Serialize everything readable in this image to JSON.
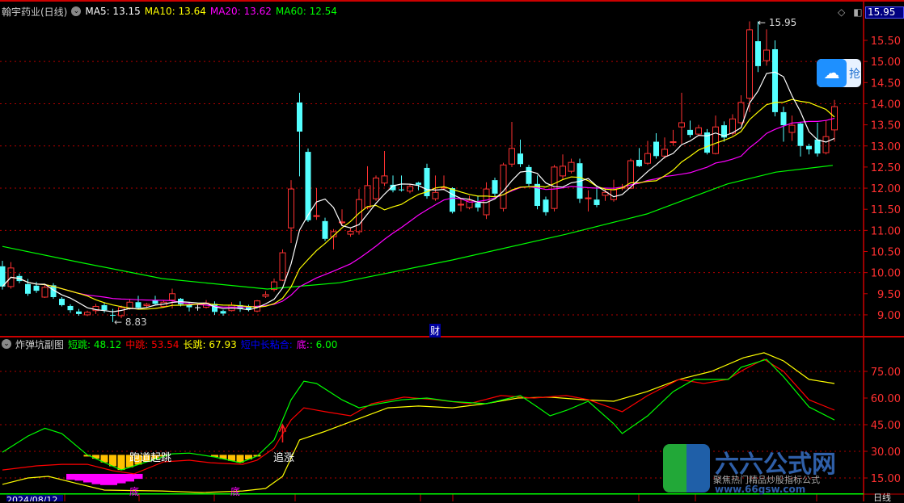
{
  "header": {
    "stock_title": "翰宇药业(日线)",
    "ma5": "MA5: 13.15",
    "ma10": "MA10: 13.64",
    "ma20": "MA20: 13.62",
    "ma60": "MA60: 12.54",
    "current_price_box": "15.95"
  },
  "sub_header": {
    "title": "炸弹坑副图",
    "short_label": "短跳",
    "short_value": ": 48.12",
    "mid_label": "中跳",
    "mid_value": ": 53.54",
    "long_label": "长跳",
    "long_value": ": 67.93",
    "combined_label": "短中长粘合:",
    "bottom_label": "底:",
    "bottom_value": ": 6.00"
  },
  "annotations": {
    "high": "15.95",
    "low": "8.83",
    "finance_marker": "财",
    "runway_jump": "跑道起跳",
    "chase": "追涨",
    "bottom1": "底",
    "bottom2": "底"
  },
  "bottom_axis": {
    "date": "2024/08/12",
    "period": "日线"
  },
  "logo": {
    "name": "六六公式网",
    "slogan": "聚焦热门精品炒股指标公式",
    "url": "www.66gsw.com"
  },
  "floating_badge": {
    "icon": "cloud-icon",
    "text": "抢"
  },
  "colors": {
    "up": "#ff3232",
    "down": "#54ffff",
    "ma5": "#ffffff",
    "ma10": "#ffff00",
    "ma20": "#ff00ff",
    "ma60": "#00ff00",
    "grid": "#b00000",
    "axis_text": "#ff3030"
  },
  "chart_data": [
    {
      "type": "candlestick",
      "price_axis": {
        "ticks": [
          15.5,
          15.0,
          14.5,
          14.0,
          13.5,
          13.0,
          12.5,
          12.0,
          11.5,
          11.0,
          10.5,
          10.0,
          9.5,
          9.0
        ],
        "labels": [
          "15.50",
          "15.00",
          "14.50",
          "14.00",
          "13.50",
          "13.00",
          "12.50",
          "12.00",
          "11.50",
          "11.00",
          "10.50",
          "10.00",
          "9.50",
          "9.00"
        ]
      },
      "ohlc": [
        [
          10.15,
          10.28,
          9.6,
          9.67
        ],
        [
          9.67,
          10.25,
          9.62,
          10.11
        ],
        [
          9.92,
          9.98,
          9.75,
          9.8
        ],
        [
          9.73,
          9.85,
          9.45,
          9.5
        ],
        [
          9.69,
          9.78,
          9.52,
          9.57
        ],
        [
          9.42,
          9.72,
          9.4,
          9.65
        ],
        [
          9.7,
          9.75,
          9.38,
          9.42
        ],
        [
          9.38,
          9.42,
          9.2,
          9.23
        ],
        [
          9.21,
          9.25,
          9.05,
          9.11
        ],
        [
          9.08,
          9.14,
          8.98,
          9.02
        ],
        [
          9.0,
          9.1,
          8.97,
          9.06
        ],
        [
          9.1,
          9.26,
          9.02,
          9.2
        ],
        [
          9.23,
          9.3,
          9.05,
          9.11
        ],
        [
          9.0,
          9.14,
          8.83,
          8.98
        ],
        [
          8.98,
          9.22,
          8.92,
          9.17
        ],
        [
          9.15,
          9.36,
          9.12,
          9.3
        ],
        [
          9.3,
          9.45,
          9.15,
          9.17
        ],
        [
          9.22,
          9.28,
          9.16,
          9.25
        ],
        [
          9.35,
          9.45,
          9.24,
          9.26
        ],
        [
          9.2,
          9.34,
          9.18,
          9.3
        ],
        [
          9.35,
          9.62,
          9.15,
          9.5
        ],
        [
          9.38,
          9.4,
          9.2,
          9.25
        ],
        [
          9.24,
          9.3,
          9.08,
          9.18
        ],
        [
          9.18,
          9.25,
          9.1,
          9.18
        ],
        [
          9.18,
          9.35,
          9.15,
          9.28
        ],
        [
          9.26,
          9.32,
          9.0,
          9.07
        ],
        [
          9.09,
          9.12,
          8.98,
          9.03
        ],
        [
          9.1,
          9.3,
          9.08,
          9.23
        ],
        [
          9.23,
          9.32,
          9.07,
          9.14
        ],
        [
          9.18,
          9.24,
          9.08,
          9.12
        ],
        [
          9.09,
          9.35,
          9.06,
          9.33
        ],
        [
          9.44,
          9.56,
          9.4,
          9.48
        ],
        [
          9.6,
          9.86,
          9.55,
          9.78
        ],
        [
          9.82,
          10.55,
          9.8,
          10.47
        ],
        [
          11.06,
          12.19,
          10.7,
          11.98
        ],
        [
          14.03,
          14.26,
          12.28,
          13.34
        ],
        [
          12.86,
          12.94,
          11.2,
          11.24
        ],
        [
          11.33,
          12.0,
          11.25,
          11.35
        ],
        [
          11.22,
          11.3,
          10.75,
          10.8
        ],
        [
          10.85,
          11.03,
          10.55,
          10.97
        ],
        [
          11.18,
          11.5,
          11.1,
          11.2
        ],
        [
          10.91,
          11.05,
          10.85,
          10.98
        ],
        [
          10.97,
          11.98,
          10.9,
          11.73
        ],
        [
          11.54,
          12.52,
          11.5,
          12.06
        ],
        [
          11.75,
          12.3,
          11.7,
          12.24
        ],
        [
          12.12,
          12.88,
          12.05,
          12.29
        ],
        [
          12.08,
          12.3,
          11.9,
          11.95
        ],
        [
          11.97,
          12.3,
          11.92,
          11.95
        ],
        [
          11.93,
          12.1,
          11.88,
          12.04
        ],
        [
          12.13,
          12.15,
          11.95,
          12.08
        ],
        [
          12.48,
          12.58,
          11.75,
          11.81
        ],
        [
          11.75,
          12.3,
          11.7,
          11.9
        ],
        [
          12.0,
          12.3,
          11.95,
          12.02
        ],
        [
          12.0,
          12.02,
          11.4,
          11.44
        ],
        [
          11.6,
          11.75,
          11.45,
          11.62
        ],
        [
          11.54,
          11.82,
          11.5,
          11.71
        ],
        [
          11.65,
          11.8,
          11.45,
          11.54
        ],
        [
          11.37,
          12.14,
          11.27,
          11.98
        ],
        [
          12.19,
          12.25,
          11.8,
          11.87
        ],
        [
          11.52,
          12.6,
          11.45,
          12.55
        ],
        [
          12.57,
          13.57,
          12.5,
          12.94
        ],
        [
          12.82,
          13.15,
          12.5,
          12.57
        ],
        [
          12.5,
          12.55,
          12.05,
          12.1
        ],
        [
          12.1,
          12.3,
          11.5,
          11.58
        ],
        [
          11.73,
          11.8,
          11.35,
          11.43
        ],
        [
          11.52,
          12.55,
          11.45,
          12.5
        ],
        [
          12.29,
          12.8,
          12.2,
          12.52
        ],
        [
          12.4,
          12.7,
          12.35,
          12.61
        ],
        [
          12.59,
          12.7,
          11.65,
          11.75
        ],
        [
          11.75,
          11.95,
          11.45,
          11.77
        ],
        [
          11.73,
          12.05,
          11.55,
          11.6
        ],
        [
          11.83,
          12.0,
          11.7,
          11.9
        ],
        [
          11.73,
          12.2,
          11.68,
          11.96
        ],
        [
          12.0,
          12.1,
          11.95,
          12.02
        ],
        [
          12.0,
          12.7,
          11.98,
          12.65
        ],
        [
          12.67,
          12.95,
          12.5,
          12.52
        ],
        [
          12.59,
          13.12,
          12.55,
          12.82
        ],
        [
          13.1,
          13.3,
          12.7,
          12.76
        ],
        [
          12.76,
          13.2,
          12.7,
          12.92
        ],
        [
          13.08,
          13.38,
          13.0,
          13.1
        ],
        [
          13.45,
          14.26,
          13.05,
          13.55
        ],
        [
          13.38,
          13.6,
          13.2,
          13.26
        ],
        [
          13.28,
          13.5,
          13.25,
          13.43
        ],
        [
          13.32,
          13.4,
          12.8,
          12.84
        ],
        [
          12.82,
          13.72,
          12.8,
          13.45
        ],
        [
          13.49,
          13.58,
          13.1,
          13.2
        ],
        [
          13.3,
          13.75,
          13.25,
          13.64
        ],
        [
          13.55,
          14.2,
          13.5,
          14.03
        ],
        [
          14.13,
          15.95,
          13.8,
          15.75
        ],
        [
          15.48,
          15.95,
          14.75,
          14.89
        ],
        [
          15.02,
          15.76,
          14.9,
          15.27
        ],
        [
          15.29,
          15.5,
          13.7,
          13.8
        ],
        [
          13.8,
          13.93,
          13.1,
          13.49
        ],
        [
          13.32,
          13.72,
          13.12,
          13.49
        ],
        [
          13.53,
          13.55,
          12.75,
          13.0
        ],
        [
          13.0,
          13.05,
          12.8,
          12.92
        ],
        [
          13.15,
          13.55,
          12.75,
          12.82
        ],
        [
          12.84,
          13.6,
          12.8,
          13.22
        ],
        [
          13.38,
          14.09,
          13.1,
          13.93
        ]
      ],
      "ma60_points": [
        [
          0,
          10.62
        ],
        [
          9.2,
          10.24
        ],
        [
          18.8,
          9.86
        ],
        [
          31.2,
          9.61
        ],
        [
          39.7,
          9.76
        ],
        [
          53,
          10.3
        ],
        [
          66.4,
          10.91
        ],
        [
          75.9,
          11.39
        ],
        [
          85.4,
          12.1
        ],
        [
          91.1,
          12.38
        ],
        [
          97.8,
          12.54
        ]
      ],
      "high_index": 88,
      "low_index": 13
    },
    {
      "type": "line",
      "value_axis": {
        "ticks": [
          75,
          60,
          45,
          30,
          15
        ],
        "labels": [
          "75.00",
          "60.00",
          "45.00",
          "30.00",
          "15.00"
        ]
      },
      "series": [
        {
          "name": "短跳",
          "color": "#00ff00",
          "points": [
            [
              0,
              29.5
            ],
            [
              3,
              38.6
            ],
            [
              5,
              43
            ],
            [
              7,
              40
            ],
            [
              10,
              28
            ],
            [
              14,
              19.5
            ],
            [
              20,
              28.6
            ],
            [
              22,
              29
            ],
            [
              25,
              26.8
            ],
            [
              28,
              23.6
            ],
            [
              30,
              27.3
            ],
            [
              32,
              36.4
            ],
            [
              34,
              59
            ],
            [
              35.5,
              69.5
            ],
            [
              37,
              68.2
            ],
            [
              40,
              59
            ],
            [
              42,
              54.5
            ],
            [
              44.5,
              57
            ],
            [
              47,
              59
            ],
            [
              50,
              60
            ],
            [
              53,
              58
            ],
            [
              57,
              56.8
            ],
            [
              61,
              61.4
            ],
            [
              63,
              55
            ],
            [
              64.5,
              50
            ],
            [
              66.5,
              53.2
            ],
            [
              69,
              58.2
            ],
            [
              72,
              45.5
            ],
            [
              73,
              40
            ],
            [
              76,
              50
            ],
            [
              79,
              63.6
            ],
            [
              81.5,
              70.5
            ],
            [
              85.5,
              70.5
            ],
            [
              87,
              77.3
            ],
            [
              90,
              81.8
            ],
            [
              92,
              72
            ],
            [
              95,
              55
            ],
            [
              98,
              47.7
            ]
          ]
        },
        {
          "name": "中跳",
          "color": "#ff0000",
          "points": [
            [
              0,
              19.5
            ],
            [
              4,
              21.8
            ],
            [
              7,
              22.7
            ],
            [
              10,
              22.7
            ],
            [
              13,
              19.1
            ],
            [
              15.5,
              17.3
            ],
            [
              19,
              24.1
            ],
            [
              22,
              25
            ],
            [
              24.5,
              23.6
            ],
            [
              28.3,
              22.7
            ],
            [
              30,
              25
            ],
            [
              32,
              31.8
            ],
            [
              34,
              47.7
            ],
            [
              35.5,
              54.5
            ],
            [
              38,
              52.3
            ],
            [
              41,
              50
            ],
            [
              43.5,
              56.8
            ],
            [
              47.3,
              60.5
            ],
            [
              51,
              59.1
            ],
            [
              55,
              56.8
            ],
            [
              58.7,
              61.4
            ],
            [
              62.6,
              60
            ],
            [
              66.4,
              61.4
            ],
            [
              69,
              59.1
            ],
            [
              73,
              52.3
            ],
            [
              76,
              61.4
            ],
            [
              79.7,
              70.5
            ],
            [
              82.6,
              68.2
            ],
            [
              85.4,
              70.5
            ],
            [
              87.3,
              75.9
            ],
            [
              89.7,
              81.8
            ],
            [
              92,
              75
            ],
            [
              95,
              59
            ],
            [
              98,
              53.2
            ]
          ]
        },
        {
          "name": "长跳",
          "color": "#ffff00",
          "points": [
            [
              0,
              11.4
            ],
            [
              3,
              15
            ],
            [
              5.4,
              15.9
            ],
            [
              9.2,
              11.4
            ],
            [
              12,
              8.2
            ],
            [
              18.8,
              7.7
            ],
            [
              23.5,
              6.8
            ],
            [
              28.3,
              7.7
            ],
            [
              31,
              9.1
            ],
            [
              33,
              15.9
            ],
            [
              35,
              36.4
            ],
            [
              37.8,
              40.9
            ],
            [
              41.6,
              47.7
            ],
            [
              45.4,
              54.5
            ],
            [
              49,
              55.5
            ],
            [
              53,
              54.5
            ],
            [
              56.9,
              56.8
            ],
            [
              60.7,
              60
            ],
            [
              64.5,
              60.5
            ],
            [
              68.3,
              59.1
            ],
            [
              72,
              58.2
            ],
            [
              75.9,
              63.6
            ],
            [
              79.7,
              70.5
            ],
            [
              83.5,
              75
            ],
            [
              87.3,
              82.7
            ],
            [
              89.7,
              85.5
            ],
            [
              92,
              80.9
            ],
            [
              95,
              70.5
            ],
            [
              98,
              68.2
            ]
          ]
        }
      ],
      "bottom_line": 6.0,
      "runway_bars_top": 28,
      "runway_bar_ranges": [
        [
          10,
          19
        ],
        [
          25,
          30
        ]
      ],
      "bottom_bars_top": 17.3,
      "bottom_bars": [
        [
          8,
          14
        ],
        [
          9,
          13.5
        ],
        [
          10,
          12.5
        ],
        [
          11,
          11.5
        ],
        [
          12,
          11
        ],
        [
          13,
          11
        ],
        [
          14,
          12
        ],
        [
          15,
          13
        ],
        [
          16,
          14.5
        ]
      ]
    }
  ]
}
